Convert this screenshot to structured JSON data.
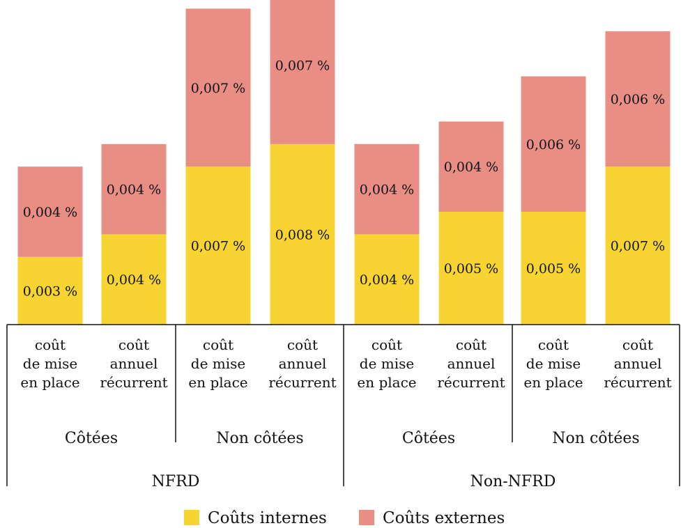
{
  "colors": {
    "internal": "#F7D432",
    "external": "#E88E85",
    "axis": "#111111"
  },
  "chart_data": {
    "type": "bar",
    "stacked": true,
    "categories": [
      [
        "coût",
        "de mise",
        "en place"
      ],
      [
        "coût",
        "annuel",
        "récurrent"
      ],
      [
        "coût",
        "de mise",
        "en place"
      ],
      [
        "coût",
        "annuel",
        "récurrent"
      ],
      [
        "coût",
        "de mise",
        "en place"
      ],
      [
        "coût",
        "annuel",
        "récurrent"
      ],
      [
        "coût",
        "de mise",
        "en place"
      ],
      [
        "coût",
        "annuel",
        "récurrent"
      ]
    ],
    "subgroups": [
      "Côtées",
      "Non côtées",
      "Côtées",
      "Non côtées"
    ],
    "groups": [
      "NFRD",
      "Non-NFRD"
    ],
    "series": [
      {
        "name": "Coûts internes",
        "values": [
          0.003,
          0.004,
          0.007,
          0.008,
          0.004,
          0.005,
          0.005,
          0.007
        ],
        "labels": [
          "0,003 %",
          "0,004 %",
          "0,007 %",
          "0,008 %",
          "0,004 %",
          "0,005 %",
          "0,005 %",
          "0,007 %"
        ]
      },
      {
        "name": "Coûts externes",
        "values": [
          0.004,
          0.004,
          0.007,
          0.007,
          0.004,
          0.004,
          0.006,
          0.006
        ],
        "labels": [
          "0,004 %",
          "0,004 %",
          "0,007 %",
          "0,007 %",
          "0,004 %",
          "0,004 %",
          "0,006 %",
          "0,006 %"
        ]
      }
    ],
    "legend_position": "bottom",
    "grid": false
  }
}
